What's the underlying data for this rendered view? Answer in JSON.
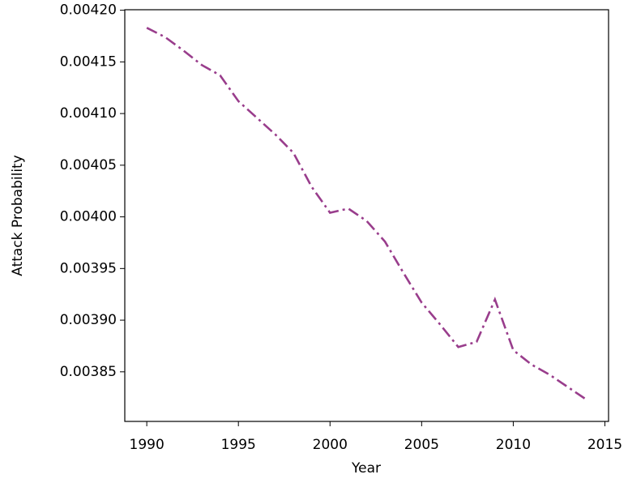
{
  "chart_data": {
    "type": "line",
    "x_label": "Year",
    "y_label": "Attack Probability",
    "x": [
      1990,
      1991,
      1992,
      1993,
      1994,
      1995,
      1996,
      1997,
      1998,
      1999,
      2000,
      2001,
      2002,
      2003,
      2004,
      2005,
      2006,
      2007,
      2008,
      2009,
      2010,
      2011,
      2012,
      2013,
      2014
    ],
    "series": [
      {
        "color": "#993d8c",
        "values": [
          0.004183,
          0.004174,
          0.004161,
          0.004147,
          0.004137,
          0.004112,
          0.004096,
          0.00408,
          0.004062,
          0.004029,
          0.004004,
          0.004008,
          0.003996,
          0.003976,
          0.003946,
          0.003917,
          0.003896,
          0.003874,
          0.003879,
          0.00392,
          0.003871,
          0.003857,
          0.003847,
          0.003835,
          0.003823
        ]
      }
    ],
    "xlim": [
      1988.8,
      2015.2
    ],
    "ylim": [
      0.003802,
      0.0042005
    ],
    "xticks": [
      1990,
      1995,
      2000,
      2005,
      2010,
      2015
    ],
    "yticks": [
      {
        "value": 0.00385,
        "label": "0.00385"
      },
      {
        "value": 0.0039,
        "label": "0.00390"
      },
      {
        "value": 0.00395,
        "label": "0.00395"
      },
      {
        "value": 0.004,
        "label": "0.00400"
      },
      {
        "value": 0.00405,
        "label": "0.00405"
      },
      {
        "value": 0.0041,
        "label": "0.00410"
      },
      {
        "value": 0.00415,
        "label": "0.00415"
      },
      {
        "value": 0.0042,
        "label": "0.00420"
      }
    ]
  }
}
